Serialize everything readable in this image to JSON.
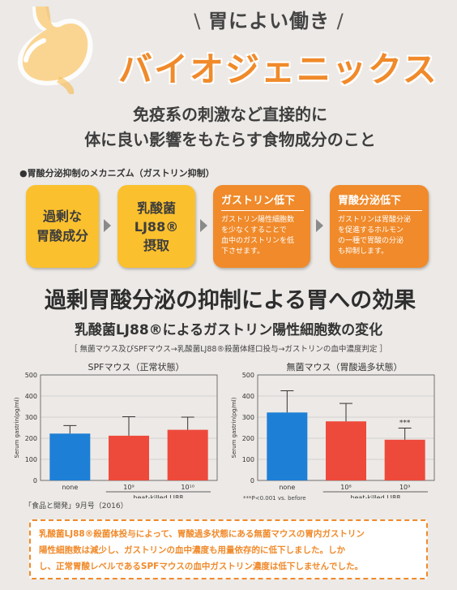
{
  "header": {
    "subtitle": "胃によい働き",
    "title": "バイオジェニックス",
    "description_line1": "免疫系の刺激など直接的に",
    "description_line2": "体に良い影響をもたらす食物成分のこと"
  },
  "mechanism": {
    "label": "胃酸分泌抑制のメカニズム（ガストリン抑制）",
    "steps": [
      {
        "text": "過剰な\n胃酸成分"
      },
      {
        "text": "乳酸菌\nLJ88®\n摂取"
      },
      {
        "title": "ガストリン低下",
        "text": "ガストリン陽性細胞数\nを少なくすることで\n血中のガストリンを低\n下させます。"
      },
      {
        "title": "胃酸分泌低下",
        "text": "ガストリンは胃酸分泌\nを促進するホルモン\nの一種で胃酸の分泌\nも抑制します。"
      }
    ]
  },
  "effect": {
    "title": "過剰胃酸分泌の抑制による胃への効果",
    "subtitle": "乳酸菌LJ88®によるガストリン陽性細胞数の変化",
    "conditions": "［ 無菌マウス及びSPFマウス→乳酸菌LJ88®殺菌体経口投与→ガストリンの血中濃度判定 ］"
  },
  "colors": {
    "blue_bar": "#1e7fd6",
    "red_bar": "#ee4a3c",
    "orange": "#f08a2a",
    "yellow": "#fbc02d"
  },
  "chart_data": [
    {
      "type": "bar",
      "title": "SPFマウス（正常状態）",
      "ylabel": "Serum gastrin(pg/ml)",
      "ylim": [
        0,
        500
      ],
      "yticks": [
        "0",
        "100",
        "200",
        "300",
        "400",
        "500"
      ],
      "categories": [
        "none",
        "10⁹",
        "10¹⁰"
      ],
      "group_label": "heat-killed LJ88",
      "values": [
        222,
        212,
        240
      ],
      "errors": [
        38,
        90,
        60
      ],
      "colors": [
        "#1e7fd6",
        "#ee4a3c",
        "#ee4a3c"
      ],
      "annotations": [
        "",
        "",
        ""
      ]
    },
    {
      "type": "bar",
      "title": "無菌マウス（胃酸過多状態）",
      "ylabel": "Serum gastrin(pg/ml)",
      "ylim": [
        0,
        500
      ],
      "yticks": [
        "0",
        "100",
        "200",
        "300",
        "400",
        "500"
      ],
      "categories": [
        "none",
        "10⁸",
        "10⁹"
      ],
      "group_label": "heat-killed LJ88",
      "values": [
        322,
        280,
        193
      ],
      "errors": [
        103,
        85,
        55
      ],
      "colors": [
        "#1e7fd6",
        "#ee4a3c",
        "#ee4a3c"
      ],
      "annotations": [
        "",
        "",
        "***"
      ]
    }
  ],
  "chart_note": "***P<0.001 vs. before",
  "source": "「食品と開発」9月号（2016）",
  "conclusion": "乳酸菌LJ88®殺菌体投与によって、胃酸過多状態にある無菌マウスの胃内ガストリン\n陽性細胞数は減少し、ガストリンの血中濃度も用量依存的に低下しました。しか\nし、正常胃酸レベルであるSPFマウスの血中ガストリン濃度は低下しませんでした。"
}
